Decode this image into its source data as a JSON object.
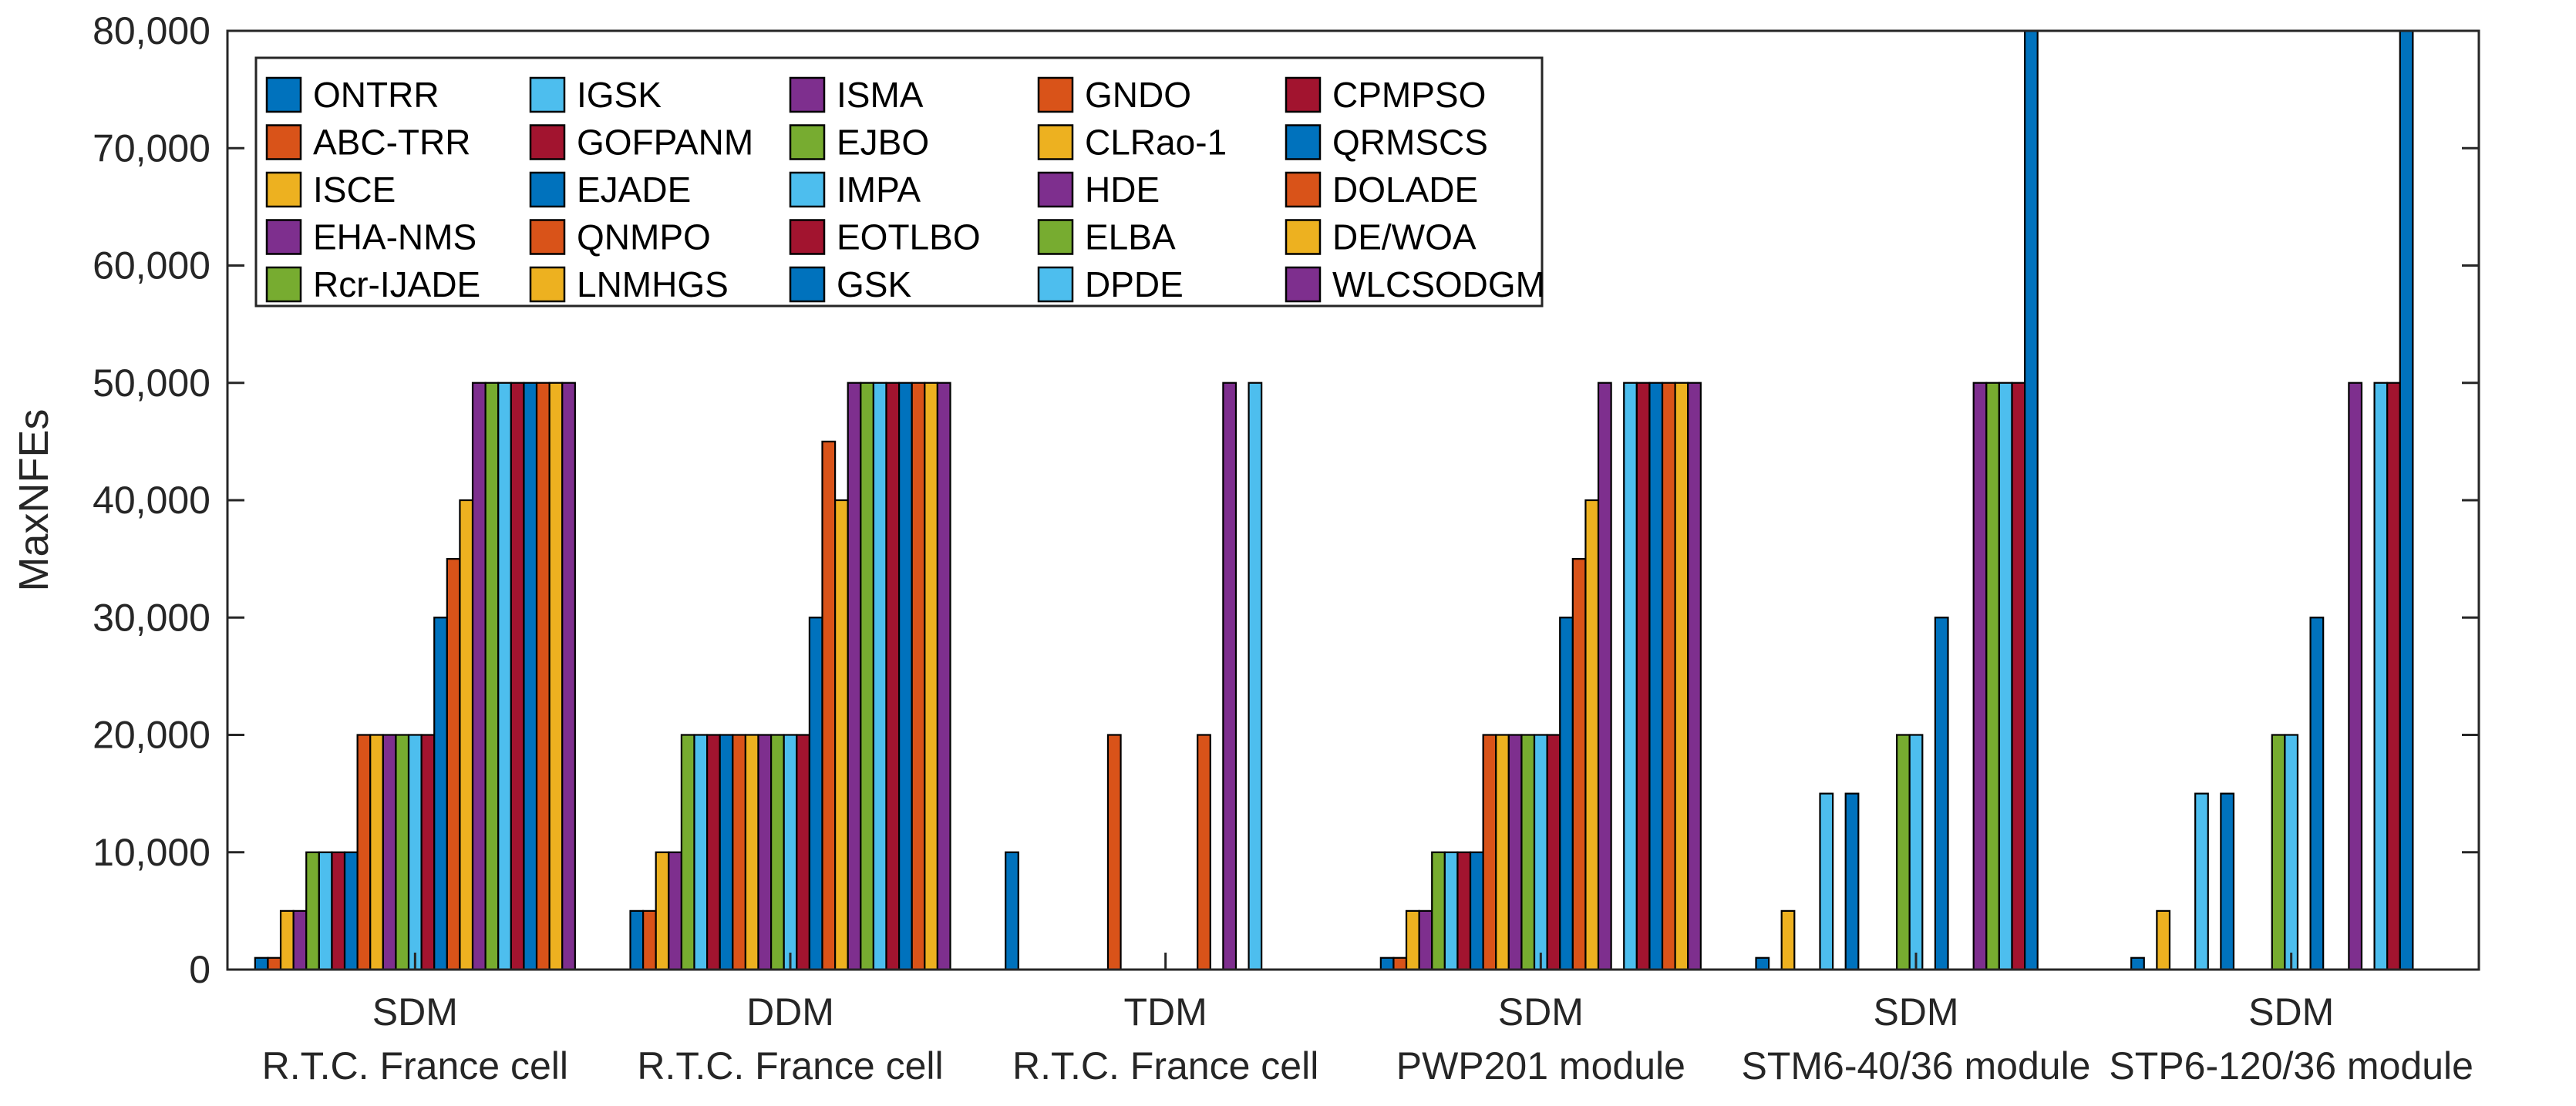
{
  "chart_data": {
    "type": "bar",
    "ylabel": "MaxNFEs",
    "xlabel": "",
    "ylim": [
      0,
      80000
    ],
    "yticks": [
      "0",
      "10,000",
      "20,000",
      "30,000",
      "40,000",
      "50,000",
      "60,000",
      "70,000",
      "80,000"
    ],
    "grid": false,
    "legend_position": "top-left",
    "legend_columns": 5,
    "categories": [
      {
        "line1": "SDM",
        "line2": "R.T.C. France cell"
      },
      {
        "line1": "DDM",
        "line2": "R.T.C. France cell"
      },
      {
        "line1": "TDM",
        "line2": "R.T.C. France cell"
      },
      {
        "line1": "SDM",
        "line2": "PWP201 module"
      },
      {
        "line1": "SDM",
        "line2": "STM6-40/36 module"
      },
      {
        "line1": "SDM",
        "line2": "STP6-120/36 module"
      }
    ],
    "series": [
      {
        "name": "ONTRR",
        "color": "#0072BD",
        "values": [
          1000,
          5000,
          10000,
          1000,
          1000,
          1000
        ]
      },
      {
        "name": "ABC-TRR",
        "color": "#D95319",
        "values": [
          1000,
          5000,
          null,
          1000,
          null,
          null
        ]
      },
      {
        "name": "ISCE",
        "color": "#EDB120",
        "values": [
          5000,
          10000,
          null,
          5000,
          5000,
          5000
        ]
      },
      {
        "name": "EHA-NMS",
        "color": "#7E2F8E",
        "values": [
          5000,
          10000,
          null,
          5000,
          null,
          null
        ]
      },
      {
        "name": "Rcr-IJADE",
        "color": "#77AC30",
        "values": [
          10000,
          20000,
          null,
          10000,
          null,
          null
        ]
      },
      {
        "name": "IGSK",
        "color": "#4DBEEE",
        "values": [
          10000,
          20000,
          null,
          10000,
          15000,
          15000
        ]
      },
      {
        "name": "GOFPANM",
        "color": "#A2142F",
        "values": [
          10000,
          20000,
          null,
          10000,
          null,
          null
        ]
      },
      {
        "name": "EJADE",
        "color": "#0072BD",
        "values": [
          10000,
          20000,
          null,
          10000,
          15000,
          15000
        ]
      },
      {
        "name": "QNMPO",
        "color": "#D95319",
        "values": [
          20000,
          20000,
          20000,
          20000,
          null,
          null
        ]
      },
      {
        "name": "LNMHGS",
        "color": "#EDB120",
        "values": [
          20000,
          20000,
          null,
          20000,
          null,
          null
        ]
      },
      {
        "name": "ISMA",
        "color": "#7E2F8E",
        "values": [
          20000,
          20000,
          null,
          20000,
          null,
          null
        ]
      },
      {
        "name": "EJBO",
        "color": "#77AC30",
        "values": [
          20000,
          20000,
          null,
          20000,
          20000,
          20000
        ]
      },
      {
        "name": "IMPA",
        "color": "#4DBEEE",
        "values": [
          20000,
          20000,
          null,
          20000,
          20000,
          20000
        ]
      },
      {
        "name": "EOTLBO",
        "color": "#A2142F",
        "values": [
          20000,
          20000,
          null,
          20000,
          null,
          null
        ]
      },
      {
        "name": "GSK",
        "color": "#0072BD",
        "values": [
          30000,
          30000,
          null,
          30000,
          30000,
          30000
        ]
      },
      {
        "name": "GNDO",
        "color": "#D95319",
        "values": [
          35000,
          45000,
          20000,
          35000,
          null,
          null
        ]
      },
      {
        "name": "CLRao-1",
        "color": "#EDB120",
        "values": [
          40000,
          40000,
          null,
          40000,
          null,
          null
        ]
      },
      {
        "name": "HDE",
        "color": "#7E2F8E",
        "values": [
          50000,
          50000,
          50000,
          50000,
          50000,
          50000
        ]
      },
      {
        "name": "ELBA",
        "color": "#77AC30",
        "values": [
          50000,
          50000,
          null,
          null,
          50000,
          null
        ]
      },
      {
        "name": "DPDE",
        "color": "#4DBEEE",
        "values": [
          50000,
          50000,
          50000,
          50000,
          50000,
          50000
        ]
      },
      {
        "name": "CPMPSO",
        "color": "#A2142F",
        "values": [
          50000,
          50000,
          null,
          50000,
          50000,
          50000
        ]
      },
      {
        "name": "QRMSCS",
        "color": "#0072BD",
        "values": [
          50000,
          50000,
          null,
          50000,
          80000,
          80000
        ]
      },
      {
        "name": "DOLADE",
        "color": "#D95319",
        "values": [
          50000,
          50000,
          null,
          50000,
          null,
          null
        ]
      },
      {
        "name": "DE/WOA",
        "color": "#EDB120",
        "values": [
          50000,
          50000,
          null,
          50000,
          null,
          null
        ]
      },
      {
        "name": "WLCSODGM",
        "color": "#7E2F8E",
        "values": [
          50000,
          50000,
          null,
          50000,
          null,
          null
        ]
      }
    ]
  }
}
